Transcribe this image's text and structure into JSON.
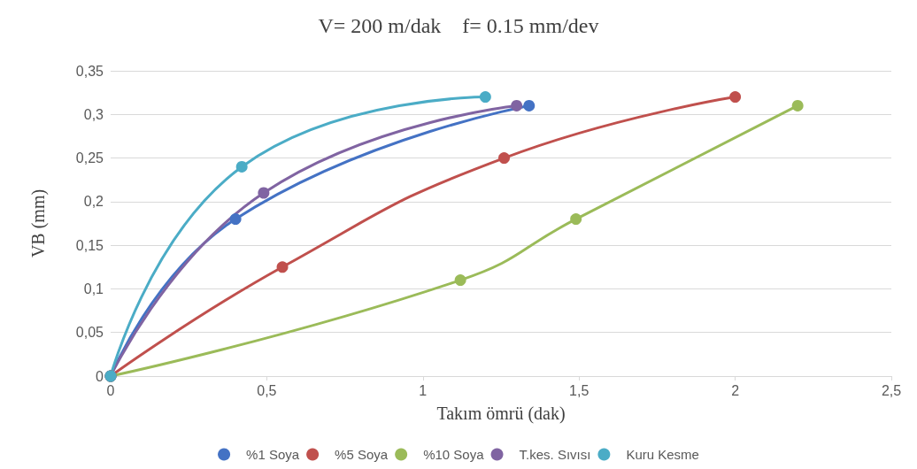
{
  "chart_data": {
    "type": "line",
    "title": "V= 200 m/dak    f= 0.15 mm/dev",
    "xlabel": "Takım ömrü (dak)",
    "ylabel": "VB (mm)",
    "series": [
      {
        "name": "%1 Soya",
        "color": "#4472c4",
        "x": [
          0,
          0.4,
          1.34
        ],
        "values": [
          0,
          0.18,
          0.31
        ]
      },
      {
        "name": "%5 Soya",
        "color": "#c0504d",
        "x": [
          0,
          0.55,
          1.26,
          2
        ],
        "values": [
          0,
          0.125,
          0.25,
          0.32
        ]
      },
      {
        "name": "%10 Soya",
        "color": "#9bbb59",
        "x": [
          0,
          1.12,
          1.49,
          2.2
        ],
        "values": [
          0,
          0.11,
          0.18,
          0.31
        ]
      },
      {
        "name": "T.kes. Sıvısı",
        "color": "#8064a2",
        "x": [
          0,
          0.49,
          1.3
        ],
        "values": [
          0,
          0.21,
          0.31
        ]
      },
      {
        "name": "Kuru Kesme",
        "color": "#4bacc6",
        "x": [
          0,
          0.42,
          1.2
        ],
        "values": [
          0,
          0.24,
          0.32
        ]
      }
    ],
    "xlim": [
      0,
      2.5
    ],
    "xticks": [
      0,
      {
        "value": 0.5,
        "label": "0,5"
      },
      1,
      {
        "value": 1.5,
        "label": "1,5"
      },
      2,
      {
        "value": 2.5,
        "label": "2,5"
      }
    ],
    "ylim": [
      0,
      0.35
    ],
    "yticks": [
      0,
      {
        "value": 0.05,
        "label": "0,05"
      },
      {
        "value": 0.1,
        "label": "0,1"
      },
      {
        "value": 0.15,
        "label": "0,15"
      },
      {
        "value": 0.2,
        "label": "0,2"
      },
      {
        "value": 0.25,
        "label": "0,25"
      },
      {
        "value": 0.3,
        "label": "0,3"
      },
      {
        "value": 0.35,
        "label": "0,35"
      }
    ],
    "grid": "y",
    "legend": "bottom",
    "marker": "circle",
    "line_style": "solid"
  }
}
